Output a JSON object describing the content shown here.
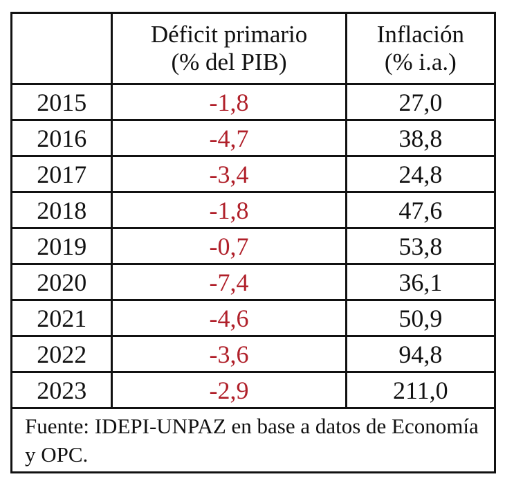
{
  "table": {
    "headers": [
      "",
      "Déficit primario (% del PIB)",
      "Inflación (% i.a.)"
    ],
    "header_lines": {
      "deficit": [
        "Déficit primario",
        "(% del PIB)"
      ],
      "inflacion": [
        "Inflación",
        "(% i.a.)"
      ]
    },
    "rows": [
      {
        "year": "2015",
        "deficit": "-1,8",
        "inflacion": "27,0"
      },
      {
        "year": "2016",
        "deficit": "-4,7",
        "inflacion": "38,8"
      },
      {
        "year": "2017",
        "deficit": "-3,4",
        "inflacion": "24,8"
      },
      {
        "year": "2018",
        "deficit": "-1,8",
        "inflacion": "47,6"
      },
      {
        "year": "2019",
        "deficit": "-0,7",
        "inflacion": "53,8"
      },
      {
        "year": "2020",
        "deficit": "-7,4",
        "inflacion": "36,1"
      },
      {
        "year": "2021",
        "deficit": "-4,6",
        "inflacion": "50,9"
      },
      {
        "year": "2022",
        "deficit": "-3,6",
        "inflacion": "94,8"
      },
      {
        "year": "2023",
        "deficit": "-2,9",
        "inflacion": "211,0"
      }
    ],
    "source": "Fuente: IDEPI-UNPAZ en base a datos de Economía y OPC.",
    "colors": {
      "deficit_text": "#b0202a",
      "text": "#111111",
      "border": "#111111"
    }
  }
}
